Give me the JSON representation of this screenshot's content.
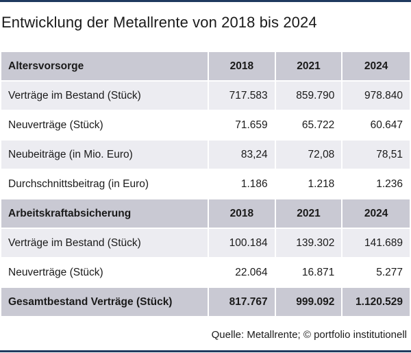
{
  "title": "Entwicklung der Metallrente von 2018 bis 2024",
  "sections": [
    {
      "header": {
        "label": "Altersvorsorge",
        "years": [
          "2018",
          "2021",
          "2024"
        ]
      },
      "rows": [
        {
          "label": "Verträge im Bestand (Stück)",
          "values": [
            "717.583",
            "859.790",
            "978.840"
          ]
        },
        {
          "label": "Neuverträge (Stück)",
          "values": [
            "71.659",
            "65.722",
            "60.647"
          ]
        },
        {
          "label": "Neubeiträge (in Mio. Euro)",
          "values": [
            "83,24",
            "72,08",
            "78,51"
          ]
        },
        {
          "label": "Durchschnittsbeitrag (in Euro)",
          "values": [
            "1.186",
            "1.218",
            "1.236"
          ]
        }
      ]
    },
    {
      "header": {
        "label": "Arbeitskraftabsicherung",
        "years": [
          "2018",
          "2021",
          "2024"
        ]
      },
      "rows": [
        {
          "label": "Verträge im Bestand (Stück)",
          "values": [
            "100.184",
            "139.302",
            "141.689"
          ]
        },
        {
          "label": "Neuverträge (Stück)",
          "values": [
            "22.064",
            "16.871",
            "5.277"
          ]
        }
      ]
    }
  ],
  "total": {
    "label": "Gesamtbestand Verträge (Stück)",
    "values": [
      "817.767",
      "999.092",
      "1.120.529"
    ]
  },
  "source": "Quelle: Metallrente; © portfolio institutionell",
  "colors": {
    "header_bg": "#c9c9d3",
    "shaded_row_bg": "#ececf1",
    "rule": "#1f3a5f"
  }
}
